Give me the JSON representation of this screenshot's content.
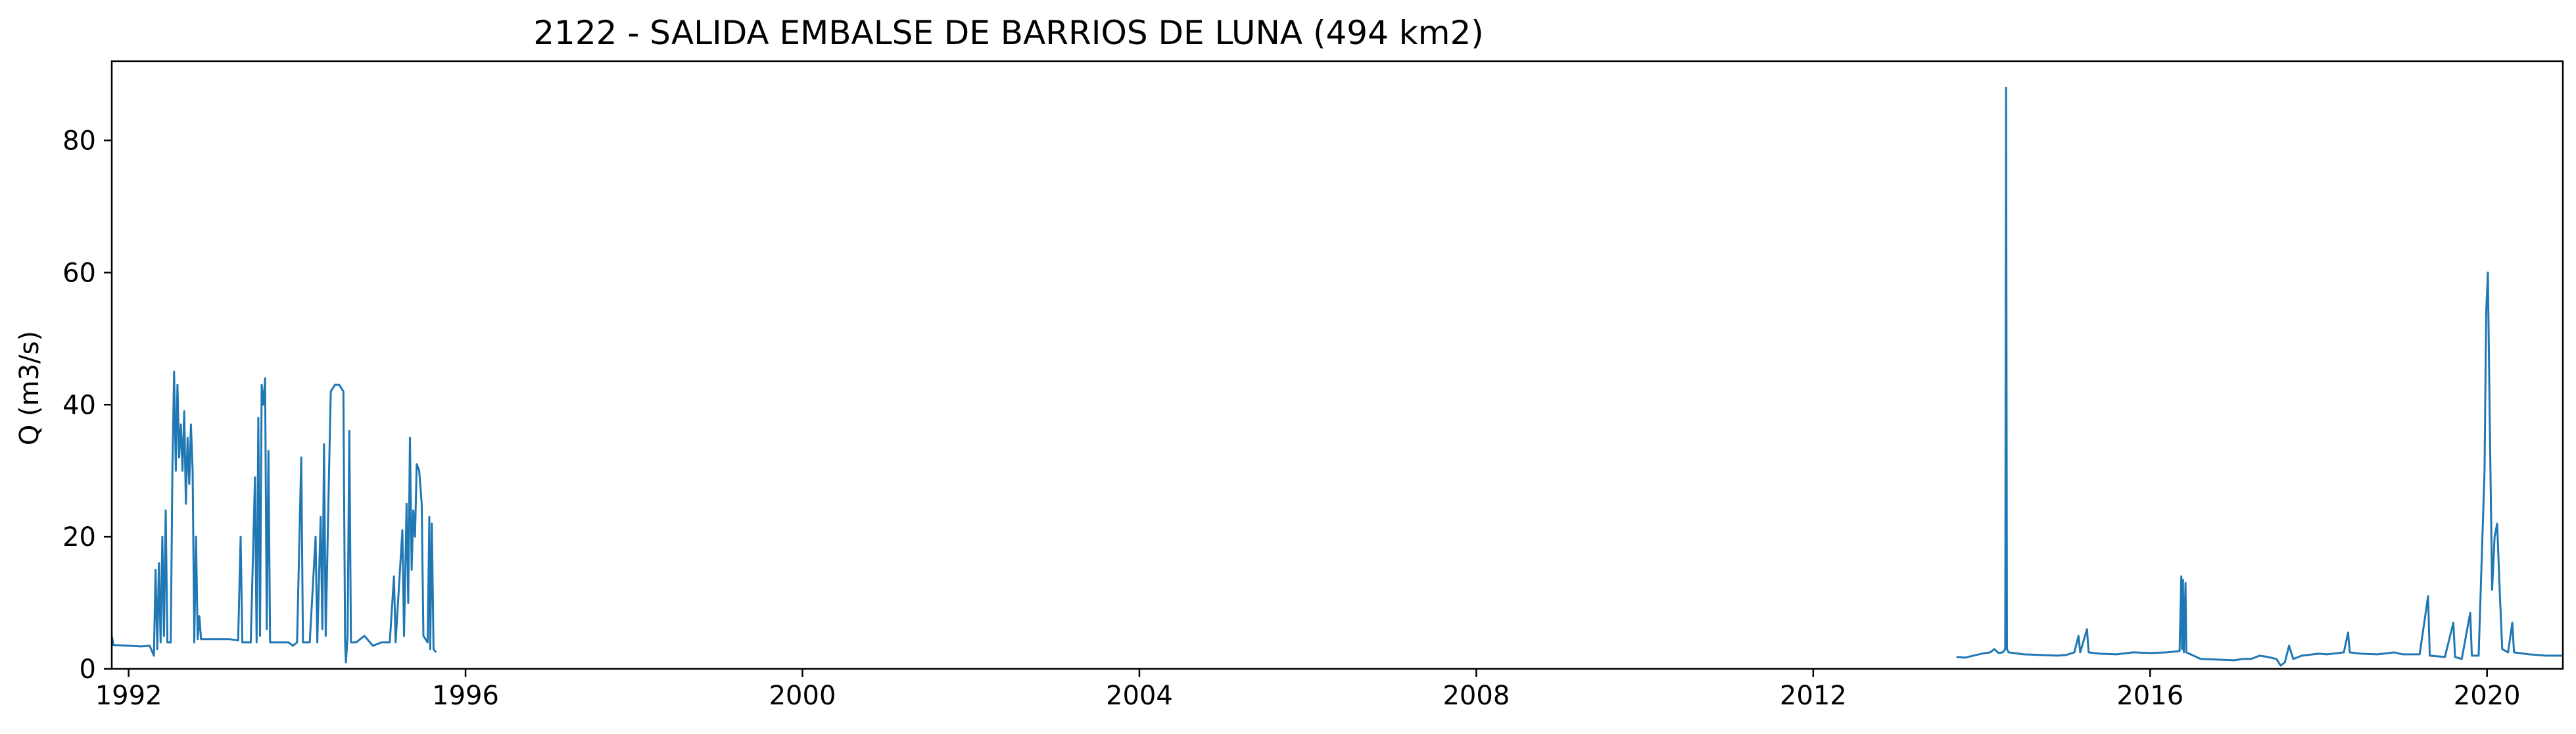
{
  "chart_data": {
    "type": "line",
    "title": "2122 - SALIDA EMBALSE DE BARRIOS DE LUNA (494 km2)",
    "xlabel": "",
    "ylabel": "Q (m3/s)",
    "xlim": [
      1991.8,
      2020.9
    ],
    "ylim": [
      0,
      92
    ],
    "grid": false,
    "x_ticks": [
      1992,
      1996,
      2000,
      2004,
      2008,
      2012,
      2016,
      2020
    ],
    "x_tick_labels": [
      "1992",
      "1996",
      "2000",
      "2004",
      "2008",
      "2012",
      "2016",
      "2020"
    ],
    "y_ticks": [
      0,
      20,
      40,
      60,
      80
    ],
    "y_tick_labels": [
      "0",
      "20",
      "40",
      "60",
      "80"
    ],
    "line_color": "#1f77b4",
    "series": [
      {
        "segments": [
          [
            [
              1991.8,
              5.0
            ],
            [
              1991.82,
              3.6
            ],
            [
              1992.0,
              3.5
            ],
            [
              1992.15,
              3.4
            ],
            [
              1992.25,
              3.5
            ],
            [
              1992.3,
              2.0
            ],
            [
              1992.32,
              15.0
            ],
            [
              1992.34,
              3.0
            ],
            [
              1992.36,
              16.0
            ],
            [
              1992.38,
              4.0
            ],
            [
              1992.4,
              20.0
            ],
            [
              1992.42,
              5.0
            ],
            [
              1992.44,
              24.0
            ],
            [
              1992.46,
              4.0
            ],
            [
              1992.5,
              4.0
            ],
            [
              1992.52,
              30.0
            ],
            [
              1992.54,
              45.0
            ],
            [
              1992.56,
              30.0
            ],
            [
              1992.58,
              43.0
            ],
            [
              1992.6,
              32.0
            ],
            [
              1992.62,
              37.0
            ],
            [
              1992.64,
              30.0
            ],
            [
              1992.66,
              39.0
            ],
            [
              1992.68,
              25.0
            ],
            [
              1992.7,
              35.0
            ],
            [
              1992.72,
              28.0
            ],
            [
              1992.74,
              37.0
            ],
            [
              1992.76,
              30.0
            ],
            [
              1992.78,
              4.0
            ],
            [
              1992.8,
              20.0
            ],
            [
              1992.82,
              4.5
            ],
            [
              1992.84,
              8.0
            ],
            [
              1992.86,
              4.5
            ],
            [
              1993.0,
              4.5
            ],
            [
              1993.2,
              4.5
            ],
            [
              1993.3,
              4.3
            ],
            [
              1993.33,
              20.0
            ],
            [
              1993.35,
              4.0
            ],
            [
              1993.45,
              4.0
            ],
            [
              1993.5,
              29.0
            ],
            [
              1993.52,
              4.0
            ],
            [
              1993.54,
              38.0
            ],
            [
              1993.56,
              5.0
            ],
            [
              1993.58,
              43.0
            ],
            [
              1993.6,
              40.0
            ],
            [
              1993.62,
              44.0
            ],
            [
              1993.64,
              6.0
            ],
            [
              1993.66,
              33.0
            ],
            [
              1993.68,
              4.0
            ],
            [
              1993.8,
              4.0
            ],
            [
              1993.9,
              4.0
            ],
            [
              1993.95,
              3.5
            ],
            [
              1994.0,
              4.0
            ],
            [
              1994.05,
              32.0
            ],
            [
              1994.07,
              4.0
            ],
            [
              1994.15,
              4.0
            ],
            [
              1994.22,
              20.0
            ],
            [
              1994.24,
              4.0
            ],
            [
              1994.28,
              23.0
            ],
            [
              1994.3,
              6.0
            ],
            [
              1994.32,
              34.0
            ],
            [
              1994.34,
              5.0
            ],
            [
              1994.38,
              30.0
            ],
            [
              1994.4,
              42.0
            ],
            [
              1994.45,
              43.0
            ],
            [
              1994.5,
              43.0
            ],
            [
              1994.55,
              42.0
            ],
            [
              1994.57,
              4.0
            ],
            [
              1994.58,
              1.0
            ],
            [
              1994.6,
              5.0
            ],
            [
              1994.62,
              36.0
            ],
            [
              1994.64,
              4.0
            ],
            [
              1994.7,
              4.0
            ],
            [
              1994.8,
              5.0
            ],
            [
              1994.9,
              3.5
            ],
            [
              1995.0,
              4.0
            ],
            [
              1995.1,
              4.0
            ],
            [
              1995.15,
              14.0
            ],
            [
              1995.17,
              4.0
            ],
            [
              1995.25,
              21.0
            ],
            [
              1995.27,
              5.0
            ],
            [
              1995.3,
              25.0
            ],
            [
              1995.32,
              10.0
            ],
            [
              1995.34,
              35.0
            ],
            [
              1995.36,
              15.0
            ],
            [
              1995.38,
              24.0
            ],
            [
              1995.4,
              20.0
            ],
            [
              1995.42,
              31.0
            ],
            [
              1995.45,
              30.0
            ],
            [
              1995.48,
              25.0
            ],
            [
              1995.5,
              5.0
            ],
            [
              1995.55,
              4.0
            ],
            [
              1995.57,
              23.0
            ],
            [
              1995.58,
              3.0
            ],
            [
              1995.6,
              22.0
            ],
            [
              1995.62,
              3.0
            ],
            [
              1995.65,
              2.5
            ]
          ],
          [
            [
              2013.7,
              1.8
            ],
            [
              2013.8,
              1.7
            ],
            [
              2013.9,
              2.0
            ],
            [
              2014.0,
              2.3
            ],
            [
              2014.1,
              2.5
            ],
            [
              2014.15,
              3.0
            ],
            [
              2014.2,
              2.4
            ],
            [
              2014.25,
              2.5
            ],
            [
              2014.28,
              3.0
            ],
            [
              2014.29,
              88.0
            ],
            [
              2014.3,
              3.0
            ],
            [
              2014.32,
              2.5
            ],
            [
              2014.5,
              2.2
            ],
            [
              2014.7,
              2.1
            ],
            [
              2014.9,
              2.0
            ],
            [
              2015.0,
              2.1
            ],
            [
              2015.1,
              2.5
            ],
            [
              2015.15,
              5.0
            ],
            [
              2015.17,
              2.5
            ],
            [
              2015.25,
              6.0
            ],
            [
              2015.27,
              2.5
            ],
            [
              2015.4,
              2.3
            ],
            [
              2015.6,
              2.2
            ],
            [
              2015.8,
              2.5
            ],
            [
              2016.0,
              2.4
            ],
            [
              2016.2,
              2.5
            ],
            [
              2016.35,
              2.7
            ],
            [
              2016.37,
              14.0
            ],
            [
              2016.38,
              3.0
            ],
            [
              2016.39,
              13.5
            ],
            [
              2016.4,
              2.5
            ],
            [
              2016.42,
              13.0
            ],
            [
              2016.43,
              2.5
            ],
            [
              2016.6,
              1.5
            ],
            [
              2016.8,
              1.4
            ],
            [
              2017.0,
              1.3
            ],
            [
              2017.1,
              1.5
            ],
            [
              2017.2,
              1.5
            ],
            [
              2017.3,
              2.0
            ],
            [
              2017.4,
              1.8
            ],
            [
              2017.5,
              1.5
            ],
            [
              2017.55,
              0.5
            ],
            [
              2017.6,
              1.0
            ],
            [
              2017.65,
              3.5
            ],
            [
              2017.7,
              1.5
            ],
            [
              2017.8,
              2.0
            ],
            [
              2018.0,
              2.3
            ],
            [
              2018.1,
              2.2
            ],
            [
              2018.3,
              2.5
            ],
            [
              2018.35,
              5.5
            ],
            [
              2018.37,
              2.5
            ],
            [
              2018.5,
              2.3
            ],
            [
              2018.7,
              2.2
            ],
            [
              2018.9,
              2.5
            ],
            [
              2019.0,
              2.2
            ],
            [
              2019.2,
              2.2
            ],
            [
              2019.3,
              11.0
            ],
            [
              2019.32,
              2.0
            ],
            [
              2019.5,
              1.8
            ],
            [
              2019.6,
              7.0
            ],
            [
              2019.62,
              1.8
            ],
            [
              2019.7,
              1.5
            ],
            [
              2019.8,
              8.5
            ],
            [
              2019.82,
              2.0
            ],
            [
              2019.9,
              2.0
            ],
            [
              2019.97,
              30.0
            ],
            [
              2019.99,
              54.0
            ],
            [
              2020.01,
              60.0
            ],
            [
              2020.03,
              40.0
            ],
            [
              2020.06,
              12.0
            ],
            [
              2020.09,
              20.0
            ],
            [
              2020.12,
              22.0
            ],
            [
              2020.15,
              12.0
            ],
            [
              2020.18,
              3.0
            ],
            [
              2020.25,
              2.5
            ],
            [
              2020.3,
              7.0
            ],
            [
              2020.32,
              2.5
            ],
            [
              2020.5,
              2.2
            ],
            [
              2020.7,
              2.0
            ],
            [
              2020.9,
              2.0
            ]
          ]
        ]
      }
    ]
  }
}
